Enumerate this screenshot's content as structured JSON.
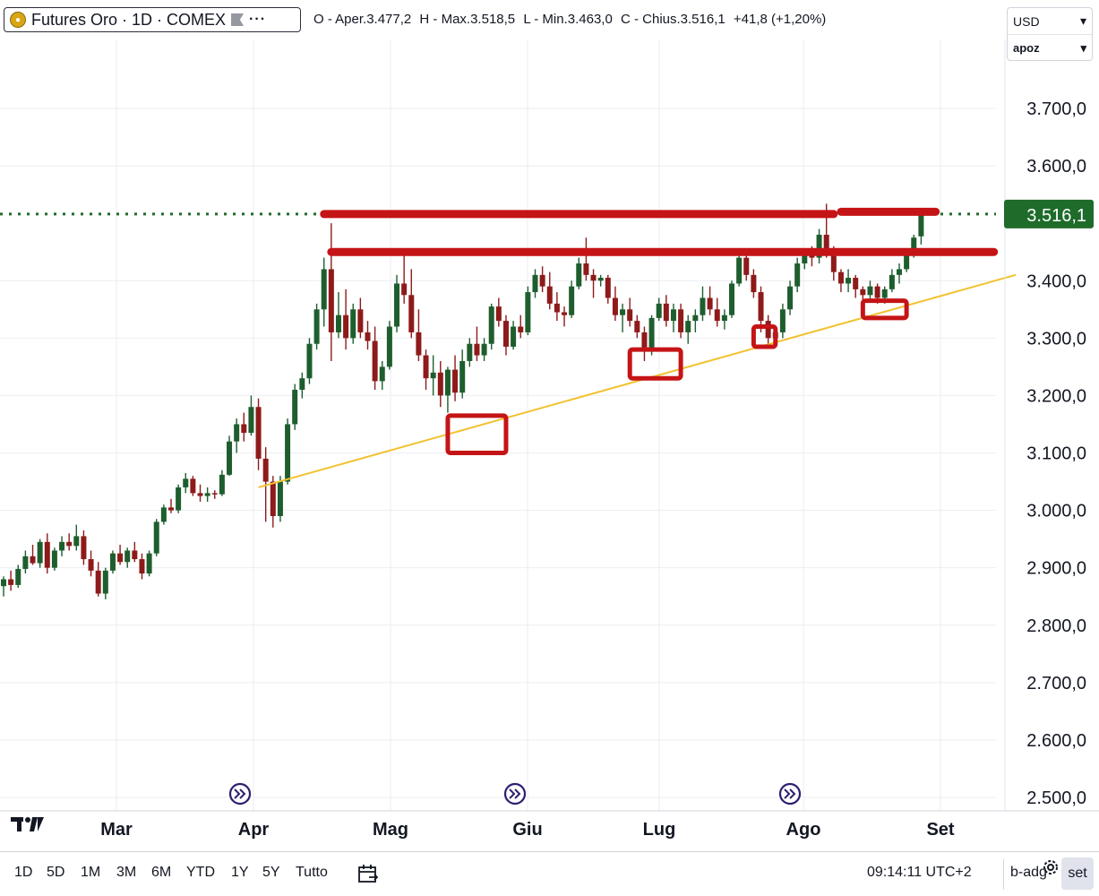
{
  "header": {
    "symbol_title": "Futures Oro · 1D · COMEX",
    "ohlc": {
      "open": "O - Aper.3.477,2",
      "high": "H - Max.3.518,5",
      "low": "L - Min.3.463,0",
      "close": "C - Chius.3.516,1",
      "change": "+41,8 (+1,20%)"
    },
    "currency": "USD",
    "adjustment": "apoz",
    "icons": [
      "gold-coin-icon",
      "flag-icon",
      "more-dots-icon",
      "chevron-down-icon"
    ]
  },
  "chart_data": {
    "type": "candlestick",
    "price_axis_labels": [
      "3.700,0",
      "3.600,0",
      "3.516,1",
      "3.400,0",
      "3.300,0",
      "3.200,0",
      "3.100,0",
      "3.000,0",
      "2.900,0",
      "2.800,0",
      "2.700,0",
      "2.600,0",
      "2.500,0"
    ],
    "price_ticks": [
      3700,
      3600,
      3400,
      3300,
      3200,
      3100,
      3000,
      2900,
      2800,
      2700,
      2600,
      2500
    ],
    "ylim": [
      2490,
      3790
    ],
    "time_axis_labels": [
      "Mar",
      "Apr",
      "Mag",
      "Giu",
      "Lug",
      "Ago",
      "Set"
    ],
    "last_price": 3516.1,
    "last_price_label": "3.516,1",
    "colors": {
      "up": "#1e5e2e",
      "down": "#8e1a1a",
      "last_price": "#1e6b2a",
      "annotation": "#c51416",
      "trendline": "#f2c230",
      "grid": "#eceef2"
    },
    "candles": [
      [
        2868,
        2885,
        2850,
        2880
      ],
      [
        2880,
        2895,
        2860,
        2870
      ],
      [
        2870,
        2905,
        2865,
        2898
      ],
      [
        2898,
        2930,
        2890,
        2920
      ],
      [
        2920,
        2940,
        2905,
        2908
      ],
      [
        2908,
        2950,
        2900,
        2945
      ],
      [
        2945,
        2960,
        2890,
        2900
      ],
      [
        2900,
        2935,
        2895,
        2930
      ],
      [
        2930,
        2955,
        2920,
        2945
      ],
      [
        2945,
        2960,
        2930,
        2938
      ],
      [
        2938,
        2975,
        2930,
        2955
      ],
      [
        2955,
        2965,
        2905,
        2915
      ],
      [
        2915,
        2930,
        2885,
        2895
      ],
      [
        2895,
        2910,
        2850,
        2855
      ],
      [
        2855,
        2900,
        2845,
        2895
      ],
      [
        2895,
        2930,
        2890,
        2925
      ],
      [
        2925,
        2940,
        2905,
        2910
      ],
      [
        2910,
        2935,
        2900,
        2930
      ],
      [
        2930,
        2945,
        2910,
        2915
      ],
      [
        2915,
        2925,
        2880,
        2890
      ],
      [
        2890,
        2930,
        2885,
        2925
      ],
      [
        2925,
        2985,
        2920,
        2980
      ],
      [
        2980,
        3010,
        2975,
        3005
      ],
      [
        3005,
        3020,
        2995,
        3000
      ],
      [
        3000,
        3045,
        2995,
        3040
      ],
      [
        3040,
        3065,
        3030,
        3055
      ],
      [
        3055,
        3060,
        3025,
        3030
      ],
      [
        3030,
        3045,
        3015,
        3025
      ],
      [
        3025,
        3040,
        3015,
        3030
      ],
      [
        3030,
        3035,
        3020,
        3028
      ],
      [
        3028,
        3070,
        3025,
        3062
      ],
      [
        3062,
        3130,
        3060,
        3120
      ],
      [
        3120,
        3160,
        3100,
        3150
      ],
      [
        3150,
        3170,
        3120,
        3135
      ],
      [
        3135,
        3200,
        3130,
        3180
      ],
      [
        3180,
        3195,
        3070,
        3090
      ],
      [
        3090,
        3110,
        2980,
        3050
      ],
      [
        3050,
        3060,
        2970,
        2990
      ],
      [
        2990,
        3060,
        2980,
        3050
      ],
      [
        3050,
        3160,
        3045,
        3150
      ],
      [
        3150,
        3220,
        3140,
        3210
      ],
      [
        3210,
        3240,
        3195,
        3230
      ],
      [
        3230,
        3300,
        3220,
        3290
      ],
      [
        3290,
        3360,
        3280,
        3350
      ],
      [
        3350,
        3440,
        3320,
        3420
      ],
      [
        3420,
        3500,
        3260,
        3310
      ],
      [
        3310,
        3380,
        3300,
        3340
      ],
      [
        3340,
        3385,
        3280,
        3300
      ],
      [
        3300,
        3360,
        3290,
        3350
      ],
      [
        3350,
        3370,
        3300,
        3310
      ],
      [
        3310,
        3330,
        3280,
        3295
      ],
      [
        3295,
        3320,
        3210,
        3225
      ],
      [
        3225,
        3260,
        3210,
        3250
      ],
      [
        3250,
        3330,
        3245,
        3320
      ],
      [
        3320,
        3410,
        3310,
        3395
      ],
      [
        3395,
        3450,
        3360,
        3375
      ],
      [
        3375,
        3420,
        3300,
        3310
      ],
      [
        3310,
        3350,
        3260,
        3270
      ],
      [
        3270,
        3280,
        3210,
        3230
      ],
      [
        3230,
        3270,
        3200,
        3240
      ],
      [
        3240,
        3260,
        3180,
        3200
      ],
      [
        3200,
        3250,
        3170,
        3245
      ],
      [
        3245,
        3270,
        3190,
        3205
      ],
      [
        3205,
        3280,
        3195,
        3260
      ],
      [
        3260,
        3300,
        3250,
        3290
      ],
      [
        3290,
        3320,
        3260,
        3270
      ],
      [
        3270,
        3300,
        3260,
        3290
      ],
      [
        3290,
        3360,
        3280,
        3355
      ],
      [
        3355,
        3370,
        3320,
        3330
      ],
      [
        3330,
        3340,
        3270,
        3285
      ],
      [
        3285,
        3330,
        3280,
        3320
      ],
      [
        3320,
        3340,
        3300,
        3310
      ],
      [
        3310,
        3390,
        3305,
        3380
      ],
      [
        3380,
        3420,
        3370,
        3410
      ],
      [
        3410,
        3425,
        3380,
        3390
      ],
      [
        3390,
        3415,
        3350,
        3360
      ],
      [
        3360,
        3380,
        3330,
        3345
      ],
      [
        3345,
        3355,
        3320,
        3340
      ],
      [
        3340,
        3400,
        3335,
        3390
      ],
      [
        3390,
        3440,
        3385,
        3430
      ],
      [
        3430,
        3475,
        3400,
        3410
      ],
      [
        3410,
        3420,
        3370,
        3400
      ],
      [
        3400,
        3410,
        3390,
        3405
      ],
      [
        3405,
        3410,
        3360,
        3370
      ],
      [
        3370,
        3390,
        3330,
        3340
      ],
      [
        3340,
        3360,
        3310,
        3350
      ],
      [
        3350,
        3370,
        3320,
        3330
      ],
      [
        3330,
        3340,
        3300,
        3310
      ],
      [
        3310,
        3320,
        3260,
        3280
      ],
      [
        3280,
        3340,
        3270,
        3335
      ],
      [
        3335,
        3370,
        3330,
        3360
      ],
      [
        3360,
        3375,
        3320,
        3330
      ],
      [
        3330,
        3360,
        3310,
        3350
      ],
      [
        3350,
        3360,
        3300,
        3310
      ],
      [
        3310,
        3340,
        3290,
        3330
      ],
      [
        3330,
        3350,
        3310,
        3340
      ],
      [
        3340,
        3390,
        3330,
        3370
      ],
      [
        3370,
        3390,
        3340,
        3350
      ],
      [
        3350,
        3370,
        3320,
        3330
      ],
      [
        3330,
        3350,
        3315,
        3340
      ],
      [
        3340,
        3400,
        3335,
        3395
      ],
      [
        3395,
        3450,
        3390,
        3440
      ],
      [
        3440,
        3450,
        3400,
        3410
      ],
      [
        3410,
        3420,
        3370,
        3380
      ],
      [
        3380,
        3390,
        3310,
        3330
      ],
      [
        3330,
        3340,
        3290,
        3300
      ],
      [
        3300,
        3320,
        3295,
        3310
      ],
      [
        3310,
        3360,
        3300,
        3350
      ],
      [
        3350,
        3400,
        3340,
        3390
      ],
      [
        3390,
        3440,
        3380,
        3430
      ],
      [
        3430,
        3450,
        3420,
        3445
      ],
      [
        3445,
        3460,
        3425,
        3440
      ],
      [
        3440,
        3490,
        3430,
        3480
      ],
      [
        3480,
        3534,
        3440,
        3450
      ],
      [
        3450,
        3460,
        3400,
        3415
      ],
      [
        3415,
        3420,
        3380,
        3395
      ],
      [
        3395,
        3420,
        3380,
        3405
      ],
      [
        3405,
        3410,
        3370,
        3385
      ],
      [
        3385,
        3390,
        3360,
        3375
      ],
      [
        3375,
        3400,
        3365,
        3390
      ],
      [
        3390,
        3395,
        3360,
        3370
      ],
      [
        3370,
        3390,
        3360,
        3385
      ],
      [
        3385,
        3420,
        3380,
        3410
      ],
      [
        3410,
        3430,
        3395,
        3420
      ],
      [
        3420,
        3450,
        3415,
        3445
      ],
      [
        3445,
        3480,
        3440,
        3475
      ],
      [
        3477.2,
        3518.5,
        3463,
        3516.1
      ]
    ],
    "trendline": {
      "from": [
        35,
        3040
      ],
      "to": [
        139,
        3410
      ]
    },
    "resistance_lines": [
      {
        "from": [
          44,
          3516
        ],
        "to": [
          114,
          3516
        ]
      },
      {
        "from": [
          45,
          3450
        ],
        "to": [
          136,
          3450
        ]
      },
      {
        "from": [
          115,
          3520
        ],
        "to": [
          128,
          3520
        ]
      }
    ],
    "highlight_boxes": [
      {
        "x0": 61,
        "x1": 69,
        "y0": 3100,
        "y1": 3165
      },
      {
        "x0": 86,
        "x1": 93,
        "y0": 3230,
        "y1": 3280
      },
      {
        "x0": 103,
        "x1": 106,
        "y0": 3285,
        "y1": 3320
      },
      {
        "x0": 118,
        "x1": 124,
        "y0": 3335,
        "y1": 3365
      }
    ]
  },
  "bottom_bar": {
    "ranges": [
      "1D",
      "5D",
      "1M",
      "3M",
      "6M",
      "YTD",
      "1Y",
      "5Y",
      "Tutto"
    ],
    "clock": "09:14:11 UTC+2",
    "adjust_label": "b-adg",
    "settings_label": "set"
  }
}
